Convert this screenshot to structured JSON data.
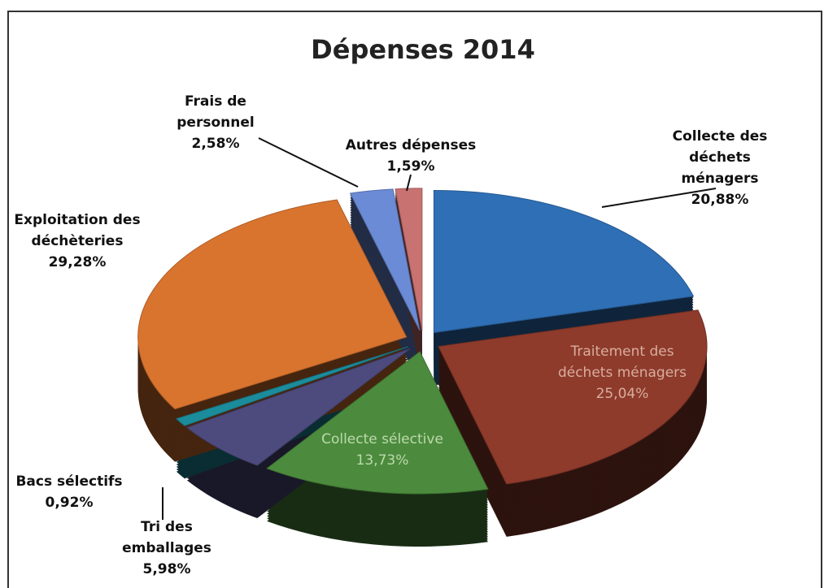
{
  "chart_data": {
    "type": "pie",
    "title": "Dépenses 2014",
    "categories": [
      "Collecte des déchets ménagers",
      "Traitement des déchets ménagers",
      "Collecte sélective",
      "Tri des emballages",
      "Bacs sélectifs",
      "Exploitation des déchèteries",
      "Frais de personnel",
      "Autres dépenses"
    ],
    "values": [
      20.88,
      25.04,
      13.73,
      5.98,
      0.92,
      29.28,
      2.58,
      1.59
    ],
    "value_labels": [
      "20,88%",
      "25,04%",
      "13,73%",
      "5,98%",
      "0,92%",
      "29,28%",
      "2,58%",
      "1,59%"
    ],
    "colors": [
      "#2f6fb5",
      "#8e3b2c",
      "#4c8b3d",
      "#4d4b7e",
      "#1b8c9c",
      "#d9742f",
      "#6b8bd6",
      "#c87272"
    ]
  }
}
